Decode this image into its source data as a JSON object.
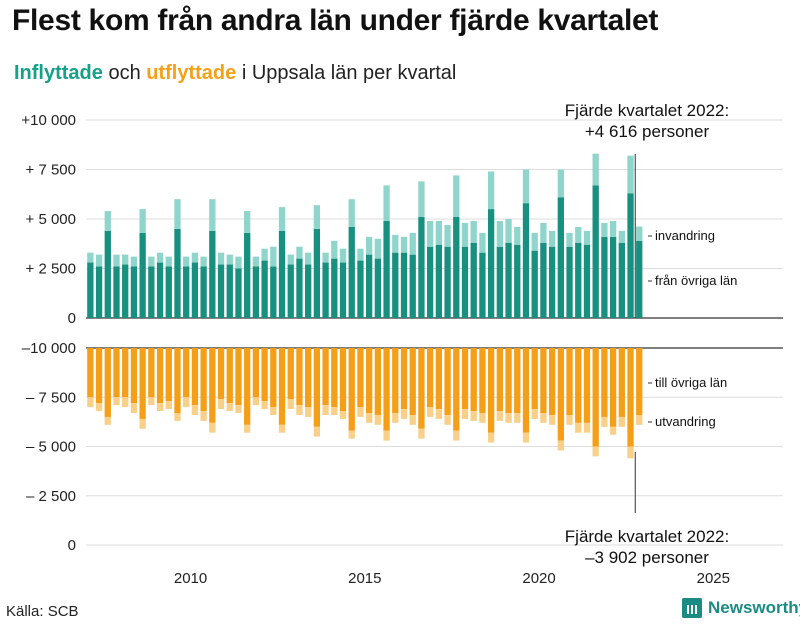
{
  "title": "Flest kom från andra län under fjärde kvartalet",
  "subtitle": {
    "in_label": "Inflyttade",
    "and": " och ",
    "out_label": "utflyttade",
    "rest": " i Uppsala län per kvartal"
  },
  "source": "Källa: SCB",
  "brand": "Newsworthy",
  "colors": {
    "in_dark": "#17907f",
    "in_light": "#8fd5cc",
    "out_dark": "#f59f18",
    "out_light": "#f8d089",
    "grid": "#dddddd",
    "axis": "#333333"
  },
  "chart_data": {
    "type": "bar",
    "stacked": true,
    "title": "Inflyttade och utflyttade i Uppsala län per kvartal",
    "x_start": "2007 Q1",
    "x_range": [
      2007,
      2027
    ],
    "x_ticks": [
      "2010",
      "2015",
      "2020",
      "2025"
    ],
    "ylim": [
      -10000,
      10000
    ],
    "y_ticks": [
      "+10 000",
      "+ 7 500",
      "+ 5 000",
      "+ 2 500",
      "0",
      "0",
      "– 2 500",
      "– 5 000",
      "– 7 500",
      "–10 000"
    ],
    "series": [
      {
        "name": "från övriga län",
        "values": [
          2800,
          2600,
          4400,
          2600,
          2700,
          2600,
          4300,
          2600,
          2800,
          2600,
          4500,
          2600,
          2800,
          2600,
          4400,
          2700,
          2700,
          2500,
          4300,
          2600,
          2900,
          2600,
          4400,
          2700,
          3000,
          2700,
          4500,
          2800,
          3000,
          2800,
          4600,
          2900,
          3200,
          3000,
          4900,
          3300,
          3300,
          3200,
          5100,
          3600,
          3700,
          3600,
          5100,
          3600,
          3800,
          3300,
          5500,
          3600,
          3800,
          3700,
          5800,
          3400,
          3800,
          3600,
          6100,
          3600,
          3800,
          3700,
          6700,
          4100,
          4100,
          3800,
          6300,
          3900
        ]
      },
      {
        "name": "invandring",
        "values": [
          500,
          600,
          1000,
          600,
          500,
          500,
          1200,
          500,
          500,
          500,
          1500,
          500,
          500,
          500,
          1600,
          600,
          500,
          600,
          1100,
          500,
          600,
          1000,
          1200,
          500,
          600,
          600,
          1200,
          500,
          900,
          700,
          1400,
          600,
          900,
          1000,
          1800,
          900,
          800,
          1100,
          1800,
          1300,
          1200,
          1100,
          2100,
          1200,
          1100,
          1000,
          1900,
          1300,
          1200,
          900,
          1700,
          900,
          1000,
          800,
          1400,
          700,
          800,
          700,
          1600,
          700,
          800,
          600,
          1900,
          716
        ]
      },
      {
        "name": "till övriga län",
        "values": [
          -2500,
          -2800,
          -3500,
          -2500,
          -2500,
          -2800,
          -3600,
          -2500,
          -2800,
          -2700,
          -3300,
          -2500,
          -2900,
          -3200,
          -3800,
          -2600,
          -2800,
          -2900,
          -3900,
          -2500,
          -2700,
          -3000,
          -3900,
          -2600,
          -2900,
          -3000,
          -4000,
          -2900,
          -3000,
          -3200,
          -4200,
          -3000,
          -3300,
          -3400,
          -4200,
          -3300,
          -3100,
          -3400,
          -4100,
          -3000,
          -3100,
          -3400,
          -4200,
          -3100,
          -3200,
          -3300,
          -4300,
          -3200,
          -3300,
          -3300,
          -4300,
          -3100,
          -3300,
          -3400,
          -4700,
          -3400,
          -3800,
          -3800,
          -5000,
          -3500,
          -4000,
          -3500,
          -5000,
          -3402
        ]
      },
      {
        "name": "utvandring",
        "values": [
          -500,
          -400,
          -400,
          -400,
          -500,
          -500,
          -500,
          -400,
          -400,
          -400,
          -400,
          -500,
          -500,
          -500,
          -500,
          -500,
          -400,
          -400,
          -400,
          -400,
          -400,
          -400,
          -400,
          -500,
          -500,
          -500,
          -500,
          -500,
          -400,
          -400,
          -400,
          -500,
          -500,
          -500,
          -500,
          -500,
          -500,
          -500,
          -500,
          -500,
          -500,
          -500,
          -500,
          -500,
          -500,
          -500,
          -500,
          -500,
          -500,
          -500,
          -500,
          -500,
          -500,
          -500,
          -500,
          -500,
          -500,
          -500,
          -500,
          -500,
          -400,
          -500,
          -600,
          -500
        ]
      }
    ],
    "annotations": {
      "top_line1": "Fjärde kvartalet 2022:",
      "top_line2": "+4 616 personer",
      "bottom_line1": "Fjärde kvartalet 2022:",
      "bottom_line2": "–3 902 personer",
      "label_invandring": "invandring",
      "label_from": "från övriga län",
      "label_to": "till övriga län",
      "label_utvandring": "utvandring"
    }
  }
}
